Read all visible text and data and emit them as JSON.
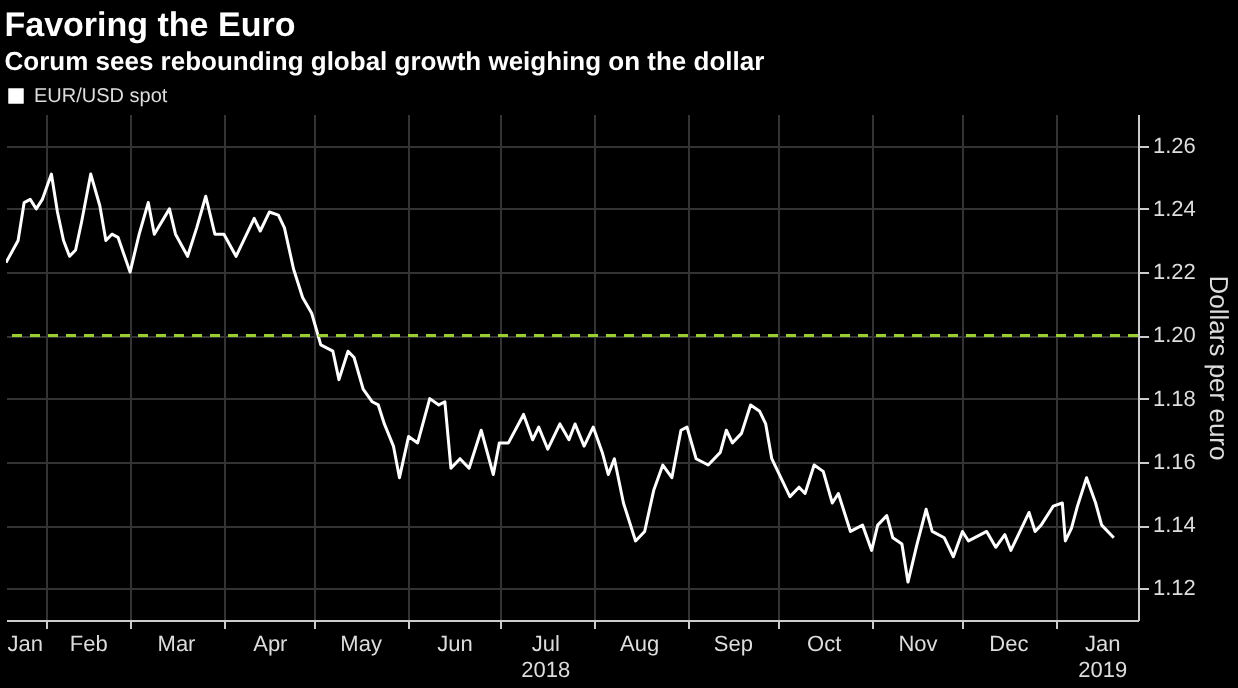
{
  "chart_data": {
    "type": "line",
    "title": "Favoring the Euro",
    "subtitle": "Corum sees rebounding global growth weighing on the dollar",
    "ylabel": "Dollars per euro",
    "x": [
      "2018-01-19",
      "2018-01-23",
      "2018-01-25",
      "2018-01-27",
      "2018-01-29",
      "2018-01-31",
      "2018-02-03",
      "2018-02-05",
      "2018-02-07",
      "2018-02-09",
      "2018-02-11",
      "2018-02-13",
      "2018-02-16",
      "2018-02-19",
      "2018-02-21",
      "2018-02-23",
      "2018-02-25",
      "2018-03-01",
      "2018-03-04",
      "2018-03-07",
      "2018-03-09",
      "2018-03-14",
      "2018-03-16",
      "2018-03-20",
      "2018-03-23",
      "2018-03-26",
      "2018-03-29",
      "2018-04-01",
      "2018-04-05",
      "2018-04-11",
      "2018-04-13",
      "2018-04-16",
      "2018-04-19",
      "2018-04-21",
      "2018-04-24",
      "2018-04-27",
      "2018-04-30",
      "2018-05-03",
      "2018-05-07",
      "2018-05-09",
      "2018-05-12",
      "2018-05-14",
      "2018-05-17",
      "2018-05-20",
      "2018-05-22",
      "2018-05-24",
      "2018-05-27",
      "2018-05-29",
      "2018-06-01",
      "2018-06-04",
      "2018-06-08",
      "2018-06-11",
      "2018-06-13",
      "2018-06-15",
      "2018-06-18",
      "2018-06-21",
      "2018-06-25",
      "2018-06-29",
      "2018-07-01",
      "2018-07-04",
      "2018-07-09",
      "2018-07-12",
      "2018-07-14",
      "2018-07-17",
      "2018-07-21",
      "2018-07-24",
      "2018-07-26",
      "2018-07-29",
      "2018-08-01",
      "2018-08-04",
      "2018-08-06",
      "2018-08-08",
      "2018-08-11",
      "2018-08-15",
      "2018-08-18",
      "2018-08-21",
      "2018-08-24",
      "2018-08-27",
      "2018-08-30",
      "2018-09-01",
      "2018-09-04",
      "2018-09-08",
      "2018-09-12",
      "2018-09-14",
      "2018-09-16",
      "2018-09-19",
      "2018-09-22",
      "2018-09-25",
      "2018-09-27",
      "2018-09-29",
      "2018-10-05",
      "2018-10-08",
      "2018-10-10",
      "2018-10-13",
      "2018-10-16",
      "2018-10-19",
      "2018-10-21",
      "2018-10-25",
      "2018-10-29",
      "2018-11-01",
      "2018-11-03",
      "2018-11-06",
      "2018-11-08",
      "2018-11-11",
      "2018-11-13",
      "2018-11-16",
      "2018-11-19",
      "2018-11-21",
      "2018-11-25",
      "2018-11-28",
      "2018-12-01",
      "2018-12-03",
      "2018-12-07",
      "2018-12-09",
      "2018-12-12",
      "2018-12-15",
      "2018-12-17",
      "2018-12-20",
      "2018-12-23",
      "2018-12-25",
      "2018-12-27",
      "2018-12-31",
      "2019-01-03",
      "2019-01-04",
      "2019-01-06",
      "2019-01-08",
      "2019-01-11",
      "2019-01-14",
      "2019-01-16",
      "2019-01-20"
    ],
    "series": [
      {
        "name": "EUR/USD spot",
        "color": "#ffffff",
        "values": [
          1.223,
          1.23,
          1.242,
          1.243,
          1.24,
          1.243,
          1.251,
          1.239,
          1.23,
          1.225,
          1.227,
          1.236,
          1.251,
          1.241,
          1.23,
          1.232,
          1.231,
          1.22,
          1.232,
          1.242,
          1.232,
          1.24,
          1.232,
          1.225,
          1.234,
          1.244,
          1.232,
          1.232,
          1.225,
          1.237,
          1.233,
          1.239,
          1.238,
          1.234,
          1.221,
          1.212,
          1.207,
          1.197,
          1.195,
          1.186,
          1.195,
          1.193,
          1.183,
          1.179,
          1.178,
          1.172,
          1.165,
          1.155,
          1.168,
          1.166,
          1.18,
          1.178,
          1.179,
          1.158,
          1.161,
          1.158,
          1.17,
          1.156,
          1.166,
          1.166,
          1.175,
          1.167,
          1.171,
          1.164,
          1.172,
          1.167,
          1.172,
          1.165,
          1.171,
          1.163,
          1.156,
          1.161,
          1.147,
          1.135,
          1.138,
          1.151,
          1.159,
          1.155,
          1.17,
          1.171,
          1.161,
          1.159,
          1.163,
          1.17,
          1.166,
          1.169,
          1.178,
          1.176,
          1.172,
          1.161,
          1.149,
          1.152,
          1.15,
          1.159,
          1.157,
          1.147,
          1.15,
          1.138,
          1.14,
          1.132,
          1.14,
          1.143,
          1.136,
          1.134,
          1.122,
          1.134,
          1.145,
          1.138,
          1.136,
          1.13,
          1.138,
          1.135,
          1.137,
          1.138,
          1.133,
          1.137,
          1.132,
          1.138,
          1.144,
          1.138,
          1.14,
          1.146,
          1.147,
          1.135,
          1.139,
          1.146,
          1.155,
          1.147,
          1.14,
          1.136
        ]
      }
    ],
    "xlim": [
      "2018-01-19",
      "2019-01-28"
    ],
    "xticks": [
      {
        "value": "2018-01-25",
        "label": "Jan"
      },
      {
        "value": "2018-02-01",
        "label": null
      },
      {
        "value": "2018-02-15",
        "label": "Feb"
      },
      {
        "value": "2018-03-01",
        "label": null
      },
      {
        "value": "2018-03-16",
        "label": "Mar"
      },
      {
        "value": "2018-04-01",
        "label": null
      },
      {
        "value": "2018-04-16",
        "label": "Apr"
      },
      {
        "value": "2018-05-01",
        "label": null
      },
      {
        "value": "2018-05-16",
        "label": "May"
      },
      {
        "value": "2018-06-01",
        "label": null
      },
      {
        "value": "2018-06-16",
        "label": "Jun"
      },
      {
        "value": "2018-07-01",
        "label": null
      },
      {
        "value": "2018-07-16",
        "label": "Jul\n2018"
      },
      {
        "value": "2018-08-01",
        "label": null
      },
      {
        "value": "2018-08-16",
        "label": "Aug"
      },
      {
        "value": "2018-09-01",
        "label": null
      },
      {
        "value": "2018-09-16",
        "label": "Sep"
      },
      {
        "value": "2018-10-01",
        "label": null
      },
      {
        "value": "2018-10-16",
        "label": "Oct"
      },
      {
        "value": "2018-11-01",
        "label": null
      },
      {
        "value": "2018-11-16",
        "label": "Nov"
      },
      {
        "value": "2018-12-01",
        "label": null
      },
      {
        "value": "2018-12-16",
        "label": "Dec"
      },
      {
        "value": "2019-01-01",
        "label": null
      },
      {
        "value": "2019-01-16",
        "label": "Jan\n2019"
      }
    ],
    "ylim": [
      1.11,
      1.27
    ],
    "yticks": [
      {
        "value": 1.12,
        "label": "1.12"
      },
      {
        "value": 1.14,
        "label": "1.14"
      },
      {
        "value": 1.16,
        "label": "1.16"
      },
      {
        "value": 1.18,
        "label": "1.18"
      },
      {
        "value": 1.2,
        "label": "1.20"
      },
      {
        "value": 1.22,
        "label": "1.22"
      },
      {
        "value": 1.24,
        "label": "1.24"
      },
      {
        "value": 1.26,
        "label": "1.26"
      }
    ],
    "ref_lines": [
      {
        "axis": "y",
        "value": 1.2,
        "color": "#9acd32",
        "line_style": "dashed"
      }
    ],
    "grid": true,
    "legend": "top left"
  }
}
